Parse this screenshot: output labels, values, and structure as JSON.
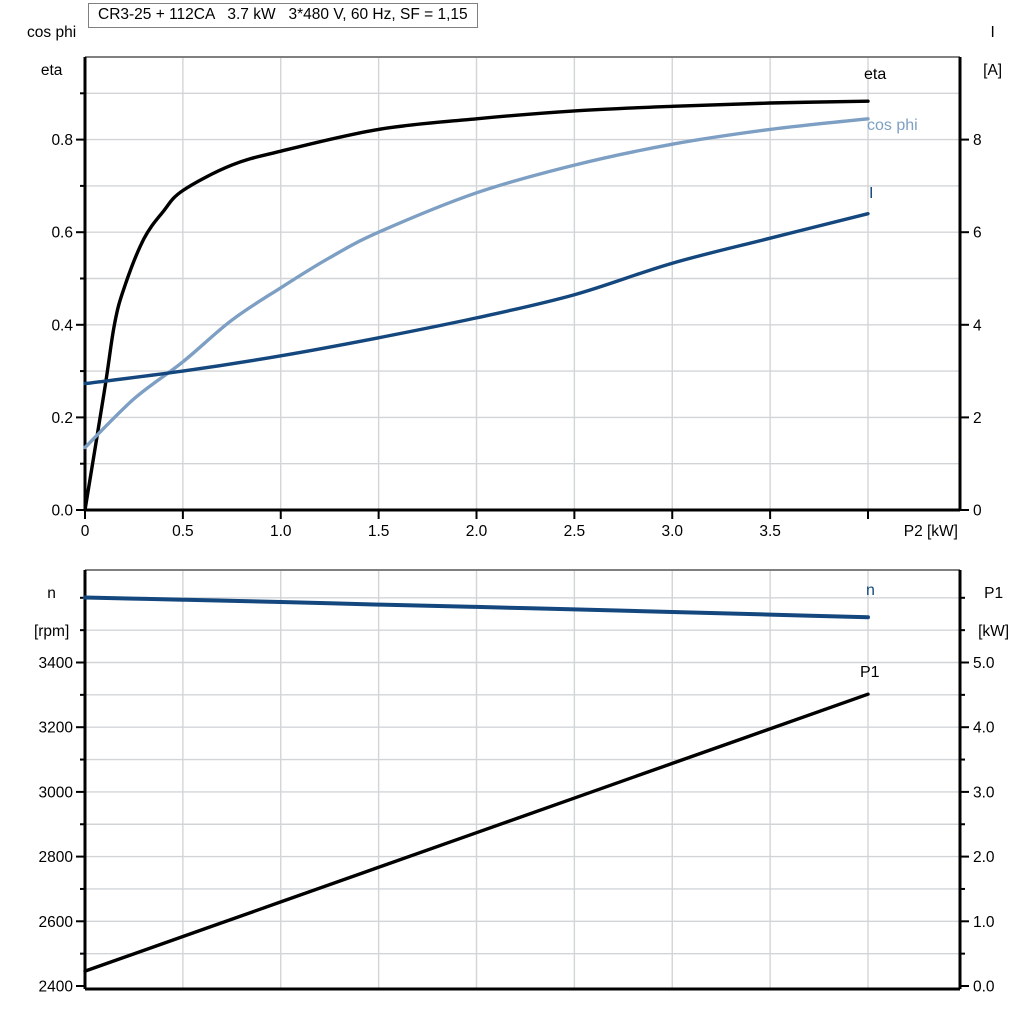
{
  "title_box": {
    "text": "CR3-25 + 112CA   3.7 kW   3*480 V, 60 Hz, SF = 1,15"
  },
  "colors": {
    "eta": "#000000",
    "cos_phi": "#7d9fc3",
    "current": "#14477d",
    "speed": "#14477d",
    "p1": "#000000",
    "grid": "#d2d5d8",
    "axis": "#000000",
    "frame_top": "#808080"
  },
  "chart_data": [
    {
      "type": "line",
      "title": "CR3-25 + 112CA   3.7 kW   3*480 V, 60 Hz, SF = 1,15",
      "x_axis": {
        "label": "P2 [kW]",
        "min": 0,
        "max": 4.0,
        "major_ticks": [
          {
            "v": 0,
            "label": "0"
          },
          {
            "v": 0.5,
            "label": "0.5"
          },
          {
            "v": 1.0,
            "label": "1.0"
          },
          {
            "v": 1.5,
            "label": "1.5"
          },
          {
            "v": 2.0,
            "label": "2.0"
          },
          {
            "v": 2.5,
            "label": "2.5"
          },
          {
            "v": 3.0,
            "label": "3.0"
          },
          {
            "v": 3.5,
            "label": "3.5"
          },
          {
            "v": 4.0,
            "label": ""
          }
        ],
        "grid": true
      },
      "left_axis": {
        "label_line1": "cos phi",
        "label_line2": "eta",
        "min": 0,
        "max": 0.975,
        "minor_step": 0.1,
        "major_ticks": [
          {
            "v": 0.0,
            "label": "0.0"
          },
          {
            "v": 0.2,
            "label": "0.2"
          },
          {
            "v": 0.4,
            "label": "0.4"
          },
          {
            "v": 0.6,
            "label": "0.6"
          },
          {
            "v": 0.8,
            "label": "0.8"
          }
        ],
        "minor_ticks": [
          0.1,
          0.3,
          0.5,
          0.7,
          0.9
        ]
      },
      "right_axis": {
        "label_line1": "I",
        "label_line2": "[A]",
        "min": 0,
        "max": 9.75,
        "minor_step": 1,
        "major_ticks": [
          {
            "v": 0,
            "label": "0"
          },
          {
            "v": 2,
            "label": "2"
          },
          {
            "v": 4,
            "label": "4"
          },
          {
            "v": 6,
            "label": "6"
          },
          {
            "v": 8,
            "label": "8"
          }
        ],
        "minor_ticks": []
      },
      "grid_y_values": [
        0.1,
        0.2,
        0.3,
        0.4,
        0.5,
        0.6,
        0.7,
        0.8,
        0.9
      ],
      "series": [
        {
          "name": "eta",
          "axis": "left",
          "color": "#000000",
          "width": 3.4,
          "x": [
            0,
            0.1,
            0.15,
            0.2,
            0.3,
            0.4,
            0.5,
            0.75,
            1.0,
            1.5,
            2.0,
            2.5,
            3.0,
            3.5,
            4.0
          ],
          "y": [
            0,
            0.26,
            0.4,
            0.48,
            0.585,
            0.645,
            0.69,
            0.745,
            0.775,
            0.822,
            0.845,
            0.862,
            0.872,
            0.879,
            0.883
          ]
        },
        {
          "name": "cos phi",
          "axis": "left",
          "color": "#7d9fc3",
          "width": 3.4,
          "x": [
            0,
            0.25,
            0.5,
            0.75,
            1.0,
            1.25,
            1.5,
            2.0,
            2.5,
            3.0,
            3.5,
            4.0
          ],
          "y": [
            0.135,
            0.24,
            0.32,
            0.41,
            0.48,
            0.545,
            0.6,
            0.685,
            0.745,
            0.79,
            0.822,
            0.845
          ]
        },
        {
          "name": "I",
          "axis": "right",
          "color": "#14477d",
          "width": 3.4,
          "x": [
            0,
            0.5,
            1.0,
            1.5,
            2.0,
            2.5,
            3.0,
            3.5,
            4.0
          ],
          "y": [
            2.73,
            3.0,
            3.33,
            3.72,
            4.15,
            4.65,
            5.33,
            5.87,
            6.4
          ]
        }
      ]
    },
    {
      "type": "line",
      "x_axis": {
        "label": "",
        "min": 0,
        "max": 4.0,
        "major_ticks": [],
        "grid": true
      },
      "left_axis": {
        "label_line1": "n",
        "label_line2": "[rpm]",
        "min": 2390,
        "max": 3690,
        "minor_step": 100,
        "major_ticks": [
          {
            "v": 2400,
            "label": "2400"
          },
          {
            "v": 2600,
            "label": "2600"
          },
          {
            "v": 2800,
            "label": "2800"
          },
          {
            "v": 3000,
            "label": "3000"
          },
          {
            "v": 3200,
            "label": "3200"
          },
          {
            "v": 3400,
            "label": "3400"
          }
        ],
        "minor_ticks": [
          2500,
          2700,
          2900,
          3100,
          3300,
          3500,
          3600
        ]
      },
      "right_axis": {
        "label_line1": "P1",
        "label_line2": "[kW]",
        "min": 0,
        "max": 6.4,
        "minor_step": 0.5,
        "major_ticks": [
          {
            "v": 0.0,
            "label": "0.0"
          },
          {
            "v": 1.0,
            "label": "1.0"
          },
          {
            "v": 2.0,
            "label": "2.0"
          },
          {
            "v": 3.0,
            "label": "3.0"
          },
          {
            "v": 4.0,
            "label": "4.0"
          },
          {
            "v": 5.0,
            "label": "5.0"
          }
        ],
        "minor_ticks": [
          0.5,
          1.5,
          2.5,
          3.5,
          4.5,
          5.5,
          6.0
        ]
      },
      "grid_y_values_rpm": [
        2500,
        2600,
        2700,
        2800,
        2900,
        3000,
        3100,
        3200,
        3300,
        3400,
        3500,
        3600
      ],
      "series": [
        {
          "name": "n",
          "axis": "left",
          "color": "#14477d",
          "width": 4,
          "x": [
            0,
            0.5,
            1.0,
            1.5,
            2.0,
            2.5,
            3.0,
            3.5,
            4.0
          ],
          "y": [
            3601,
            3594,
            3587,
            3579,
            3572,
            3564,
            3556,
            3548,
            3540
          ]
        },
        {
          "name": "P1",
          "axis": "right",
          "color": "#000000",
          "width": 3.4,
          "x": [
            0,
            1.0,
            2.0,
            3.0,
            4.0
          ],
          "y": [
            0.23,
            1.3,
            2.37,
            3.44,
            4.51
          ]
        }
      ]
    }
  ]
}
